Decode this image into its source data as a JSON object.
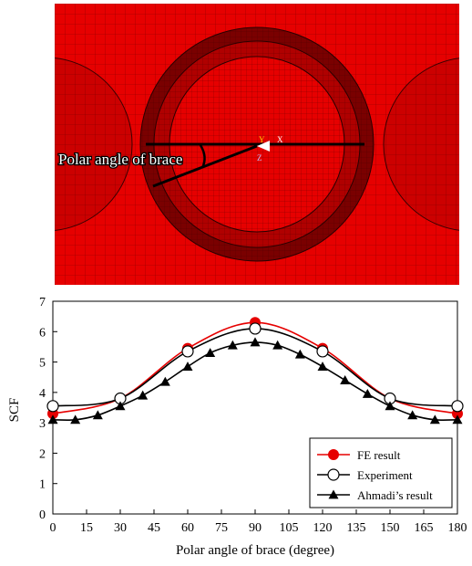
{
  "fe_model": {
    "annotation": "Polar angle of brace",
    "axis_labels": {
      "y": "Y",
      "x": "X",
      "z": "Z"
    },
    "colors": {
      "mesh_fill": "#e60000",
      "mesh_line": "#3a0000",
      "dark_ring": "#7a0000",
      "annotation": "#ffffff"
    }
  },
  "chart_data": {
    "type": "line",
    "xlabel": "Polar angle of brace (degree)",
    "ylabel": "SCF",
    "xlim": [
      0,
      180
    ],
    "ylim": [
      0,
      7
    ],
    "xticks": [
      0,
      15,
      30,
      45,
      60,
      75,
      90,
      105,
      120,
      135,
      150,
      165,
      180
    ],
    "yticks": [
      0,
      1,
      2,
      3,
      4,
      5,
      6,
      7
    ],
    "grid": false,
    "legend_position": "bottom-right",
    "series": [
      {
        "name": "FE result",
        "color": "#e60000",
        "marker": "filled-circle",
        "x": [
          0,
          30,
          60,
          90,
          120,
          150,
          180
        ],
        "values": [
          3.3,
          3.8,
          5.45,
          6.3,
          5.45,
          3.8,
          3.3
        ]
      },
      {
        "name": "Experiment",
        "color": "#000000",
        "marker": "open-circle",
        "x": [
          0,
          30,
          60,
          90,
          120,
          150,
          180
        ],
        "values": [
          3.55,
          3.8,
          5.35,
          6.1,
          5.35,
          3.8,
          3.55
        ]
      },
      {
        "name": "Ahmadi’s result",
        "color": "#000000",
        "marker": "filled-triangle",
        "x": [
          0,
          10,
          20,
          30,
          40,
          50,
          60,
          70,
          80,
          90,
          100,
          110,
          120,
          130,
          140,
          150,
          160,
          170,
          180
        ],
        "values": [
          3.1,
          3.1,
          3.25,
          3.55,
          3.9,
          4.35,
          4.85,
          5.3,
          5.55,
          5.65,
          5.55,
          5.25,
          4.85,
          4.4,
          3.95,
          3.55,
          3.25,
          3.1,
          3.1
        ]
      }
    ]
  }
}
